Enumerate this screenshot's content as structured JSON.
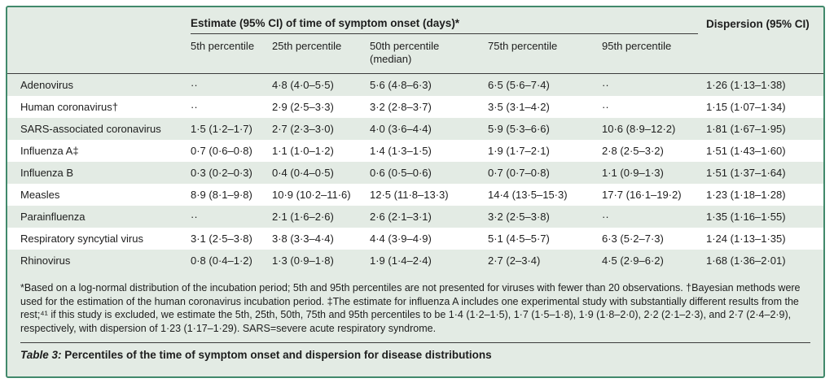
{
  "table": {
    "header": {
      "estimate_group": "Estimate (95% CI) of time of symptom onset (days)*",
      "dispersion": "Dispersion (95% CI)",
      "subcolumns": [
        "5th percentile",
        "25th percentile",
        "50th percentile\n(median)",
        "75th percentile",
        "95th percentile"
      ]
    },
    "rows": [
      {
        "name": "Adenovirus",
        "p5": "··",
        "p25": "4·8 (4·0–5·5)",
        "p50": "5·6 (4·8–6·3)",
        "p75": "6·5 (5·6–7·4)",
        "p95": "··",
        "dispersion": "1·26 (1·13–1·38)"
      },
      {
        "name": "Human coronavirus†",
        "p5": "··",
        "p25": "2·9 (2·5–3·3)",
        "p50": "3·2 (2·8–3·7)",
        "p75": "3·5 (3·1–4·2)",
        "p95": "··",
        "dispersion": "1·15 (1·07–1·34)"
      },
      {
        "name": "SARS-associated coronavirus",
        "p5": "1·5 (1·2–1·7)",
        "p25": "2·7 (2·3–3·0)",
        "p50": "4·0 (3·6–4·4)",
        "p75": "5·9 (5·3–6·6)",
        "p95": "10·6 (8·9–12·2)",
        "dispersion": "1·81 (1·67–1·95)"
      },
      {
        "name": "Influenza A‡",
        "p5": "0·7 (0·6–0·8)",
        "p25": "1·1 (1·0–1·2)",
        "p50": "1·4 (1·3–1·5)",
        "p75": "1·9 (1·7–2·1)",
        "p95": "2·8 (2·5–3·2)",
        "dispersion": "1·51 (1·43–1·60)"
      },
      {
        "name": "Influenza B",
        "p5": "0·3 (0·2–0·3)",
        "p25": "0·4 (0·4–0·5)",
        "p50": "0·6 (0·5–0·6)",
        "p75": "0·7 (0·7–0·8)",
        "p95": "1·1 (0·9–1·3)",
        "dispersion": "1·51 (1·37–1·64)"
      },
      {
        "name": "Measles",
        "p5": "8·9 (8·1–9·8)",
        "p25": "10·9 (10·2–11·6)",
        "p50": "12·5 (11·8–13·3)",
        "p75": "14·4 (13·5–15·3)",
        "p95": "17·7 (16·1–19·2)",
        "dispersion": "1·23 (1·18–1·28)"
      },
      {
        "name": "Parainfluenza",
        "p5": "··",
        "p25": "2·1 (1·6–2·6)",
        "p50": "2·6 (2·1–3·1)",
        "p75": "3·2 (2·5–3·8)",
        "p95": "··",
        "dispersion": "1·35 (1·16–1·55)"
      },
      {
        "name": "Respiratory syncytial virus",
        "p5": "3·1 (2·5–3·8)",
        "p25": "3·8 (3·3–4·4)",
        "p50": "4·4 (3·9–4·9)",
        "p75": "5·1 (4·5–5·7)",
        "p95": "6·3 (5·2–7·3)",
        "dispersion": "1·24 (1·13–1·35)"
      },
      {
        "name": "Rhinovirus",
        "p5": "0·8 (0·4–1·2)",
        "p25": "1·3 (0·9–1·8)",
        "p50": "1·9 (1·4–2·4)",
        "p75": "2·7 (2–3·4)",
        "p95": "4·5 (2·9–6·2)",
        "dispersion": "1·68 (1·36–2·01)"
      }
    ]
  },
  "footnote": "*Based on a log-normal distribution of the incubation period; 5th and 95th percentiles are not presented for viruses with fewer than 20 observations. †Bayesian methods were used for the estimation of the human coronavirus incubation period. ‡The estimate for influenza A includes one experimental study with substantially different results from the rest;⁴¹ if this study is excluded, we estimate the 5th, 25th, 50th, 75th and 95th percentiles to be 1·4 (1·2–1·5), 1·7 (1·5–1·8), 1·9 (1·8–2·0), 2·2 (2·1–2·3), and 2·7 (2·4–2·9), respectively, with dispersion of 1·23 (1·17–1·29).  SARS=severe acute respiratory syndrome.",
  "caption": {
    "prefix": "Table 3:",
    "text": " Percentiles of the time of symptom onset and dispersion for disease distributions"
  },
  "colors": {
    "card_background": "#e3ebe4",
    "card_border": "#41896b",
    "stripe_white": "#ffffff",
    "rule_dark": "#3b3b3b",
    "text": "#1d1d1d"
  }
}
